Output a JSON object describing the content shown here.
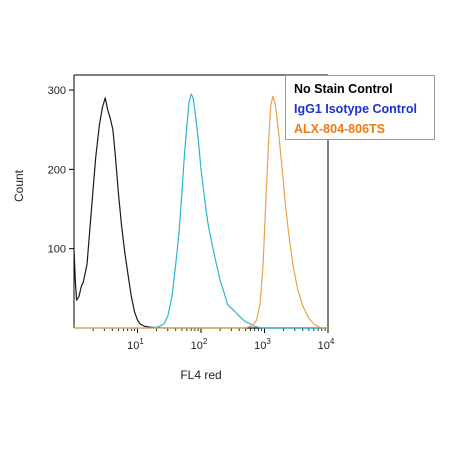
{
  "chart_data": {
    "type": "line",
    "xlabel": "FL4 red",
    "ylabel": "Count",
    "xscale": "log",
    "xlim": [
      1,
      10000
    ],
    "ylim": [
      0,
      300
    ],
    "grid": false,
    "legend_placement": "top-right",
    "y_ticks": [
      100,
      200,
      300
    ],
    "x_ticks": [
      {
        "value": 10,
        "base": "10",
        "exp": "1"
      },
      {
        "value": 100,
        "base": "10",
        "exp": "2"
      },
      {
        "value": 1000,
        "base": "10",
        "exp": "3"
      },
      {
        "value": 10000,
        "base": "10",
        "exp": "4"
      }
    ],
    "series": [
      {
        "name": "No Stain Control",
        "color": "#1a1a1a",
        "points": [
          [
            1,
            100
          ],
          [
            1.05,
            60
          ],
          [
            1.1,
            35
          ],
          [
            1.2,
            40
          ],
          [
            1.3,
            52
          ],
          [
            1.4,
            58
          ],
          [
            1.6,
            80
          ],
          [
            1.8,
            130
          ],
          [
            2.0,
            175
          ],
          [
            2.2,
            215
          ],
          [
            2.5,
            255
          ],
          [
            2.8,
            278
          ],
          [
            3.1,
            290
          ],
          [
            3.4,
            275
          ],
          [
            3.7,
            265
          ],
          [
            4.1,
            250
          ],
          [
            4.5,
            215
          ],
          [
            5,
            170
          ],
          [
            5.6,
            130
          ],
          [
            6.3,
            95
          ],
          [
            7,
            70
          ],
          [
            8,
            40
          ],
          [
            9,
            20
          ],
          [
            10,
            10
          ],
          [
            11,
            5
          ],
          [
            13,
            2
          ],
          [
            16,
            1
          ],
          [
            25,
            0
          ],
          [
            10000,
            0
          ]
        ]
      },
      {
        "name": "IgG1 Isotype Control",
        "color": "#29b6d6",
        "points": [
          [
            1,
            0
          ],
          [
            18,
            0
          ],
          [
            22,
            2
          ],
          [
            26,
            5
          ],
          [
            30,
            15
          ],
          [
            35,
            40
          ],
          [
            40,
            80
          ],
          [
            45,
            120
          ],
          [
            50,
            170
          ],
          [
            55,
            220
          ],
          [
            60,
            255
          ],
          [
            65,
            285
          ],
          [
            70,
            295
          ],
          [
            75,
            290
          ],
          [
            80,
            275
          ],
          [
            90,
            240
          ],
          [
            100,
            200
          ],
          [
            115,
            160
          ],
          [
            130,
            130
          ],
          [
            150,
            105
          ],
          [
            170,
            85
          ],
          [
            200,
            60
          ],
          [
            230,
            45
          ],
          [
            260,
            30
          ],
          [
            300,
            25
          ],
          [
            350,
            20
          ],
          [
            400,
            15
          ],
          [
            500,
            8
          ],
          [
            600,
            5
          ],
          [
            700,
            2
          ],
          [
            900,
            0
          ],
          [
            10000,
            0
          ]
        ]
      },
      {
        "name": "ALX-804-806TS",
        "color": "#e9a34d",
        "points": [
          [
            1,
            0
          ],
          [
            500,
            0
          ],
          [
            650,
            3
          ],
          [
            750,
            10
          ],
          [
            850,
            30
          ],
          [
            950,
            80
          ],
          [
            1050,
            160
          ],
          [
            1150,
            230
          ],
          [
            1250,
            280
          ],
          [
            1350,
            292
          ],
          [
            1450,
            285
          ],
          [
            1550,
            270
          ],
          [
            1700,
            240
          ],
          [
            1900,
            200
          ],
          [
            2100,
            160
          ],
          [
            2400,
            120
          ],
          [
            2800,
            80
          ],
          [
            3300,
            50
          ],
          [
            4000,
            28
          ],
          [
            5000,
            12
          ],
          [
            6000,
            5
          ],
          [
            7000,
            2
          ],
          [
            8000,
            0
          ],
          [
            10000,
            0
          ]
        ]
      }
    ]
  }
}
